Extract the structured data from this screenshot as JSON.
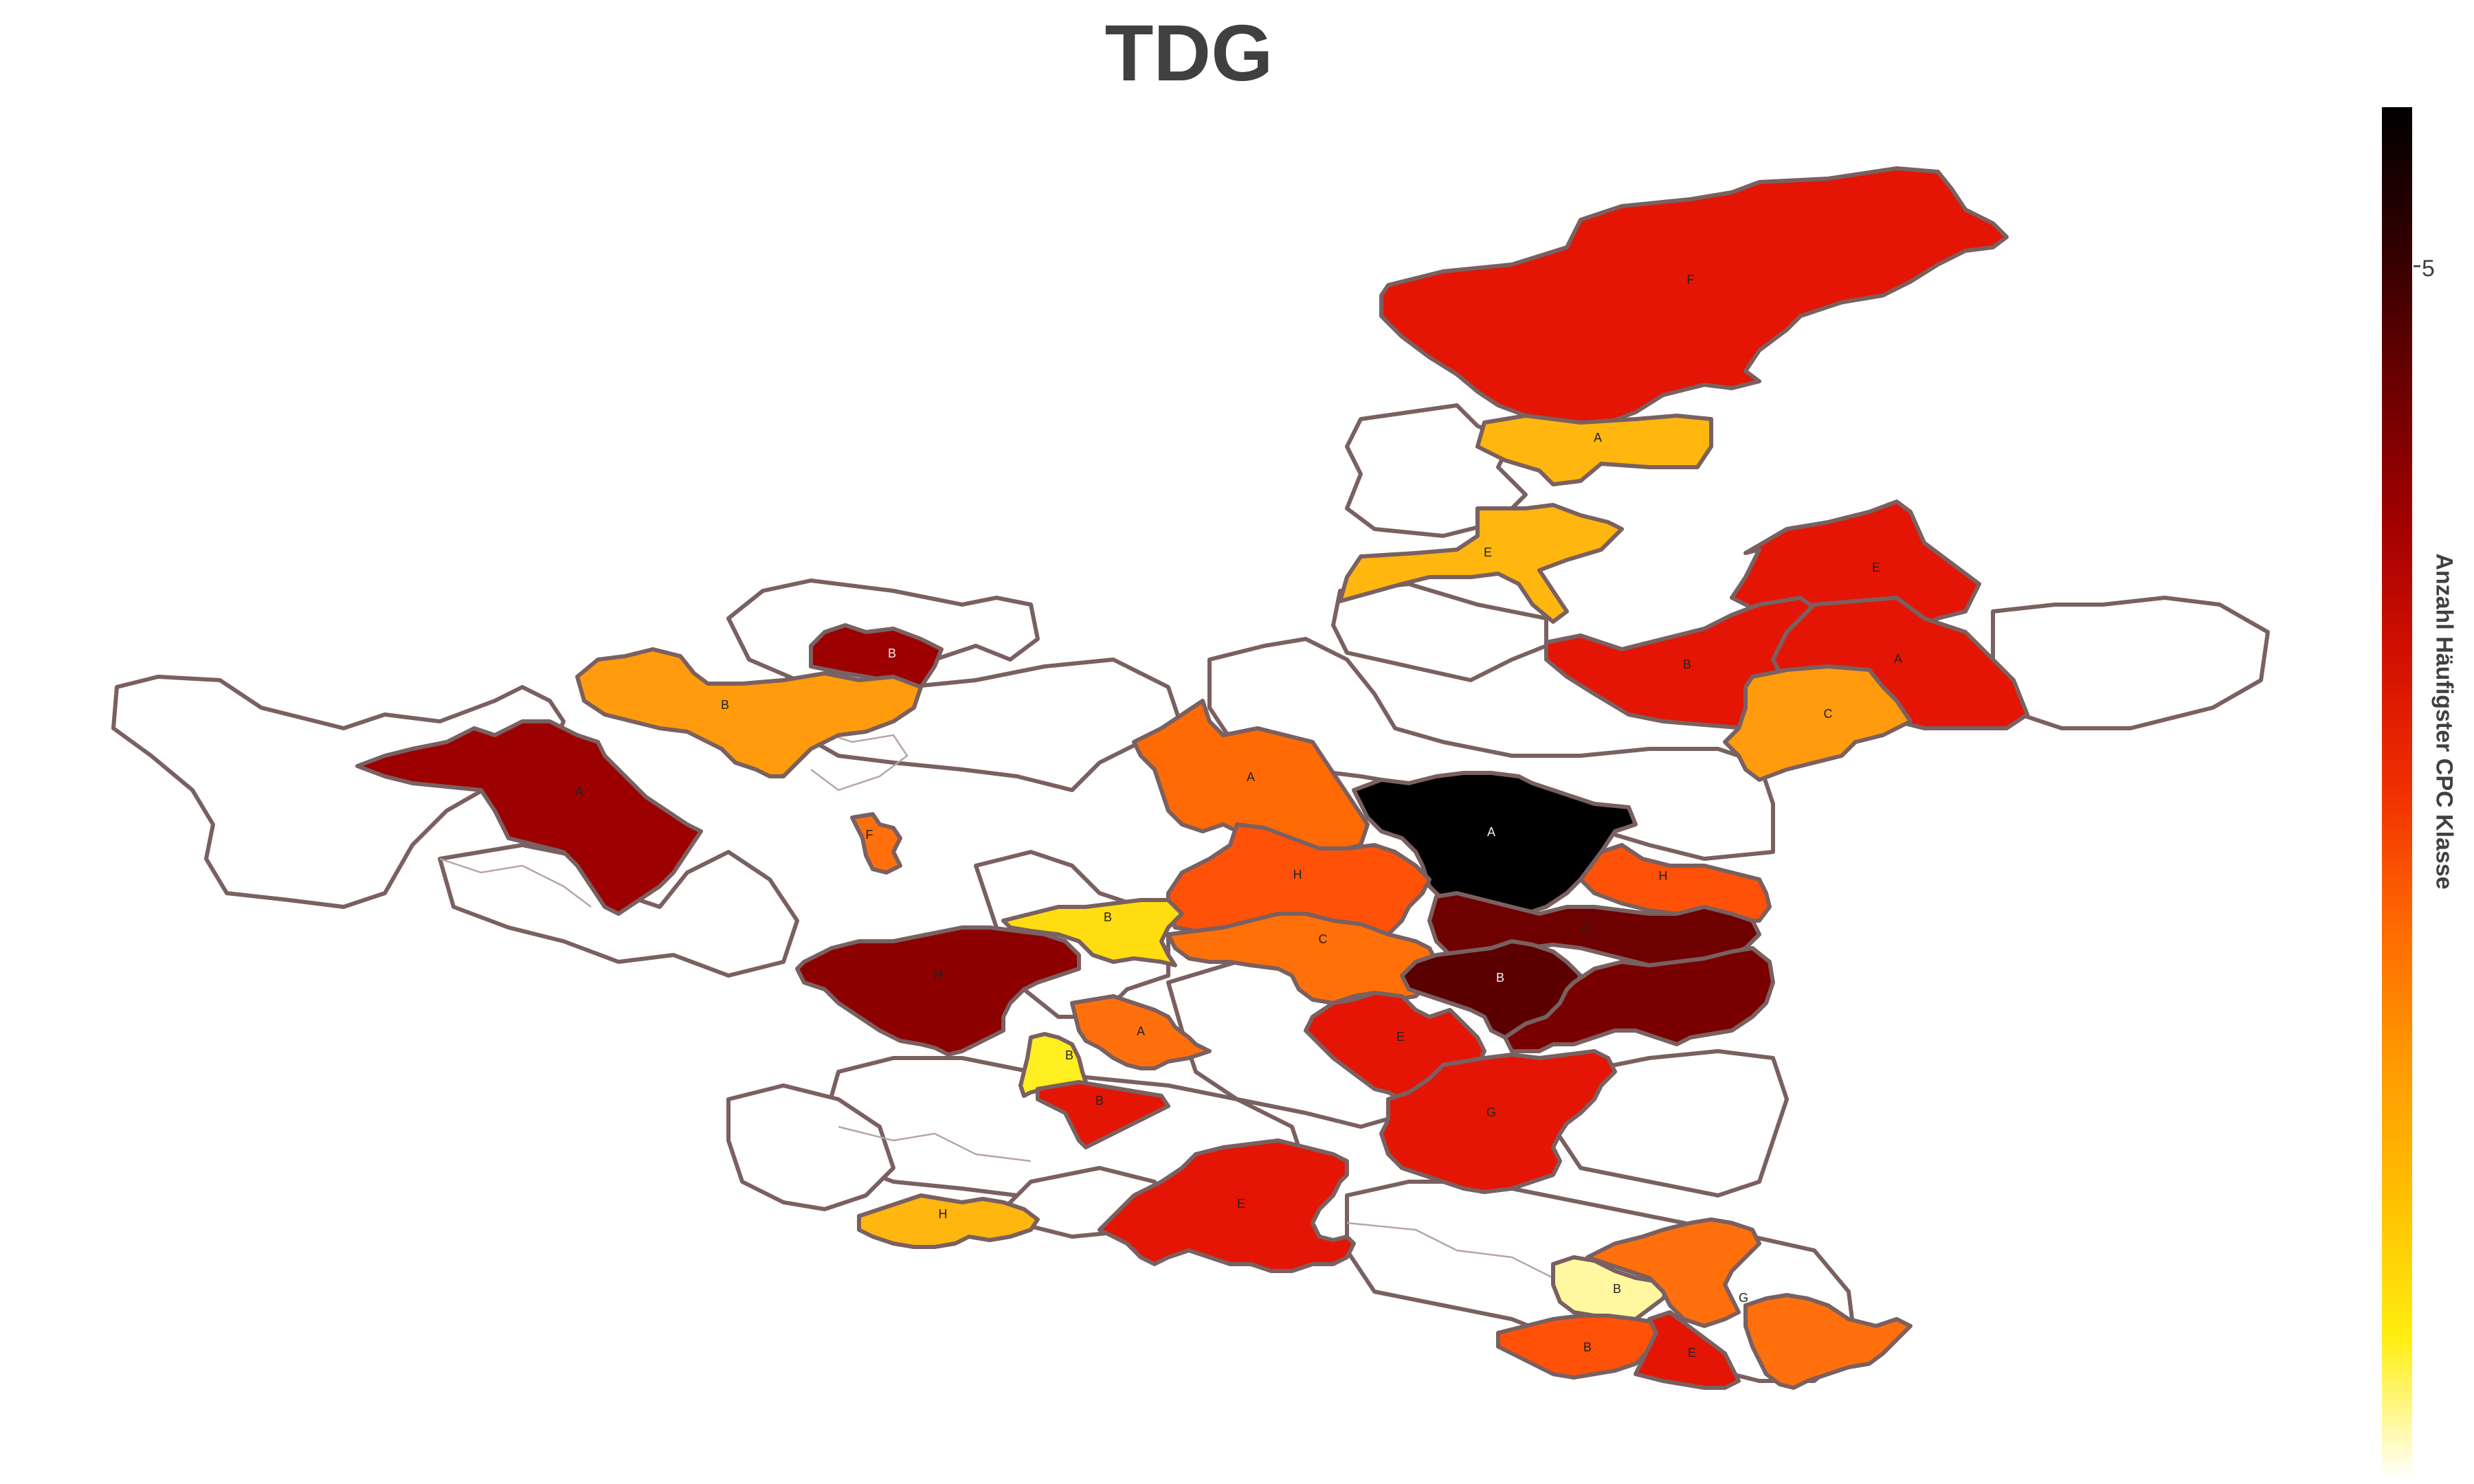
{
  "title": "TDG",
  "colorbar": {
    "title": "Anzahl Häufigster CPC Klasse",
    "tick_label": "5",
    "colors": [
      "#fffff5",
      "#ffee10",
      "#ffc000",
      "#ff9a00",
      "#ff6a00",
      "#f03000",
      "#d21000",
      "#a00000",
      "#6a0000",
      "#300000",
      "#000000"
    ]
  },
  "regions": [
    {
      "name": "north-big",
      "label": "F",
      "fill": "#e41505"
    },
    {
      "name": "north-a",
      "label": "A",
      "fill": "#ffb60f"
    },
    {
      "name": "north-e",
      "label": "E",
      "fill": "#ffb60f"
    },
    {
      "name": "ne-e",
      "label": "E",
      "fill": "#e41505"
    },
    {
      "name": "ne-b",
      "label": "B",
      "fill": "#e41505"
    },
    {
      "name": "ne-a",
      "label": "A",
      "fill": "#e41505"
    },
    {
      "name": "ne-c",
      "label": "C",
      "fill": "#ff9b0c"
    },
    {
      "name": "west-b-small",
      "label": "B",
      "fill": "#9c0000"
    },
    {
      "name": "west-b",
      "label": "B",
      "fill": "#ff9b0c"
    },
    {
      "name": "west-a",
      "label": "A",
      "fill": "#9c0000"
    },
    {
      "name": "west-f",
      "label": "F",
      "fill": "#ff700c"
    },
    {
      "name": "center-a",
      "label": "A",
      "fill": "#ff6a05"
    },
    {
      "name": "center-black",
      "label": "A",
      "fill": "#000000"
    },
    {
      "name": "center-h",
      "label": "H",
      "fill": "#ff5208"
    },
    {
      "name": "east-h",
      "label": "H",
      "fill": "#ff5208"
    },
    {
      "name": "center-c",
      "label": "C",
      "fill": "#ff7008"
    },
    {
      "name": "center-b-yellow",
      "label": "B",
      "fill": "#ffdd10"
    },
    {
      "name": "west-h",
      "label": "H",
      "fill": "#8c0000"
    },
    {
      "name": "east-c",
      "label": "C",
      "fill": "#6e0000"
    },
    {
      "name": "east-b",
      "label": "B",
      "fill": "#5a0000"
    },
    {
      "name": "east-dark",
      "label": "",
      "fill": "#7a0000"
    },
    {
      "name": "mid-e",
      "label": "E",
      "fill": "#e41505"
    },
    {
      "name": "mid-g",
      "label": "G",
      "fill": "#e41505"
    },
    {
      "name": "small-a",
      "label": "A",
      "fill": "#ff700c"
    },
    {
      "name": "small-b-yellow",
      "label": "B",
      "fill": "#ffee20"
    },
    {
      "name": "small-b-red",
      "label": "B",
      "fill": "#e41505"
    },
    {
      "name": "south-e",
      "label": "E",
      "fill": "#e41505"
    },
    {
      "name": "south-h",
      "label": "H",
      "fill": "#ffb60f"
    },
    {
      "name": "south-b-pale",
      "label": "B",
      "fill": "#fff8a0"
    },
    {
      "name": "south-g",
      "label": "G",
      "fill": "#ff700c"
    },
    {
      "name": "south-b",
      "label": "B",
      "fill": "#ff5208"
    },
    {
      "name": "south-e2",
      "label": "E",
      "fill": "#e41505"
    },
    {
      "name": "south-orange",
      "label": "",
      "fill": "#ff700c"
    }
  ]
}
